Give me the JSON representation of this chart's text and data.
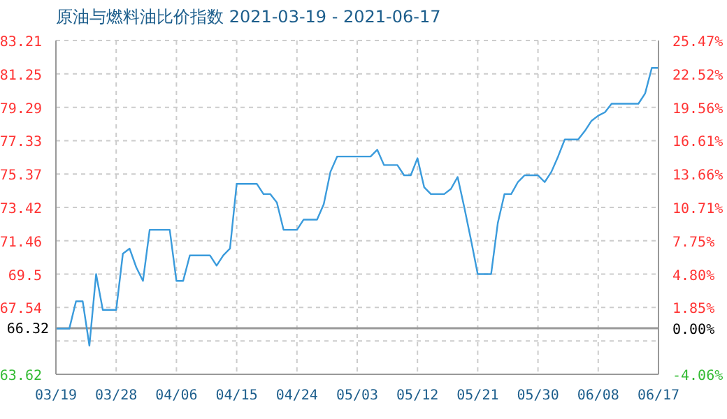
{
  "chart_data": {
    "type": "line",
    "title": "原油与燃料油比价指数 2021-03-19 - 2021-06-17",
    "x": [
      "2021-03-19",
      "2021-03-20",
      "2021-03-21",
      "2021-03-22",
      "2021-03-23",
      "2021-03-24",
      "2021-03-25",
      "2021-03-26",
      "2021-03-27",
      "2021-03-28",
      "2021-03-29",
      "2021-03-30",
      "2021-03-31",
      "2021-04-01",
      "2021-04-02",
      "2021-04-03",
      "2021-04-04",
      "2021-04-05",
      "2021-04-06",
      "2021-04-07",
      "2021-04-08",
      "2021-04-09",
      "2021-04-10",
      "2021-04-11",
      "2021-04-12",
      "2021-04-13",
      "2021-04-14",
      "2021-04-15",
      "2021-04-16",
      "2021-04-17",
      "2021-04-18",
      "2021-04-19",
      "2021-04-20",
      "2021-04-21",
      "2021-04-22",
      "2021-04-23",
      "2021-04-24",
      "2021-04-25",
      "2021-04-26",
      "2021-04-27",
      "2021-04-28",
      "2021-04-29",
      "2021-04-30",
      "2021-05-01",
      "2021-05-02",
      "2021-05-03",
      "2021-05-04",
      "2021-05-05",
      "2021-05-06",
      "2021-05-07",
      "2021-05-08",
      "2021-05-09",
      "2021-05-10",
      "2021-05-11",
      "2021-05-12",
      "2021-05-13",
      "2021-05-14",
      "2021-05-15",
      "2021-05-16",
      "2021-05-17",
      "2021-05-18",
      "2021-05-19",
      "2021-05-20",
      "2021-05-21",
      "2021-05-22",
      "2021-05-23",
      "2021-05-24",
      "2021-05-25",
      "2021-05-26",
      "2021-05-27",
      "2021-05-28",
      "2021-05-29",
      "2021-05-30",
      "2021-05-31",
      "2021-06-01",
      "2021-06-02",
      "2021-06-03",
      "2021-06-04",
      "2021-06-05",
      "2021-06-06",
      "2021-06-07",
      "2021-06-08",
      "2021-06-09",
      "2021-06-10",
      "2021-06-11",
      "2021-06-12",
      "2021-06-13",
      "2021-06-14",
      "2021-06-15",
      "2021-06-16",
      "2021-06-17"
    ],
    "series": [
      {
        "color": "#3a9bdc",
        "values": [
          66.3,
          66.3,
          66.3,
          67.9,
          67.9,
          65.3,
          69.5,
          67.4,
          67.4,
          67.4,
          70.7,
          71.0,
          69.9,
          69.1,
          72.1,
          72.1,
          72.1,
          72.1,
          69.1,
          69.1,
          70.6,
          70.6,
          70.6,
          70.6,
          70.0,
          70.6,
          71.0,
          74.8,
          74.8,
          74.8,
          74.8,
          74.2,
          74.2,
          73.7,
          72.1,
          72.1,
          72.1,
          72.7,
          72.7,
          72.7,
          73.6,
          75.5,
          76.4,
          76.4,
          76.4,
          76.4,
          76.4,
          76.4,
          76.8,
          75.9,
          75.9,
          75.9,
          75.3,
          75.3,
          76.3,
          74.6,
          74.2,
          74.2,
          74.2,
          74.5,
          75.2,
          73.4,
          71.5,
          69.5,
          69.5,
          69.5,
          72.5,
          74.2,
          74.2,
          74.9,
          75.3,
          75.3,
          75.3,
          74.9,
          75.5,
          76.4,
          77.4,
          77.4,
          77.4,
          77.9,
          78.5,
          78.8,
          79.0,
          79.5,
          79.5,
          79.5,
          79.5,
          79.5,
          80.1,
          81.6,
          81.6
        ]
      }
    ],
    "xlim": [
      "2021-03-19",
      "2021-06-17"
    ],
    "xticks": [
      {
        "value": "2021-03-19",
        "label": "03/19"
      },
      {
        "value": "2021-03-28",
        "label": "03/28"
      },
      {
        "value": "2021-04-06",
        "label": "04/06"
      },
      {
        "value": "2021-04-15",
        "label": "04/15"
      },
      {
        "value": "2021-04-24",
        "label": "04/24"
      },
      {
        "value": "2021-05-03",
        "label": "05/03"
      },
      {
        "value": "2021-05-12",
        "label": "05/12"
      },
      {
        "value": "2021-05-21",
        "label": "05/21"
      },
      {
        "value": "2021-05-30",
        "label": "05/30"
      },
      {
        "value": "2021-06-08",
        "label": "06/08"
      },
      {
        "value": "2021-06-17",
        "label": "06/17"
      }
    ],
    "ylim": [
      63.62,
      83.21
    ],
    "yticks": [
      63.62,
      {
        "value": 65.58,
        "label": null
      },
      67.54,
      69.5,
      71.46,
      73.42,
      75.37,
      77.33,
      79.29,
      81.25,
      83.21
    ],
    "y2lim": [
      -4.06,
      25.47
    ],
    "y2ticks": [
      {
        "value": -4.06,
        "label": "-4.06%"
      },
      {
        "value": 0,
        "label": "0.00%"
      },
      {
        "value": 1.85,
        "label": "1.85%"
      },
      {
        "value": 4.8,
        "label": "4.80%"
      },
      {
        "value": 7.75,
        "label": "7.75%"
      },
      {
        "value": 10.71,
        "label": "10.71%"
      },
      {
        "value": 13.66,
        "label": "13.66%"
      },
      {
        "value": 16.61,
        "label": "16.61%"
      },
      {
        "value": 19.56,
        "label": "19.56%"
      },
      {
        "value": 22.52,
        "label": "22.52%"
      },
      {
        "value": 25.47,
        "label": "25.47%"
      }
    ],
    "ref_lines": [
      {
        "axis": "y",
        "value": 66.32,
        "label": "66.32",
        "color": "#999999"
      }
    ],
    "grid": true,
    "marker": "none",
    "line_style": "solid"
  }
}
